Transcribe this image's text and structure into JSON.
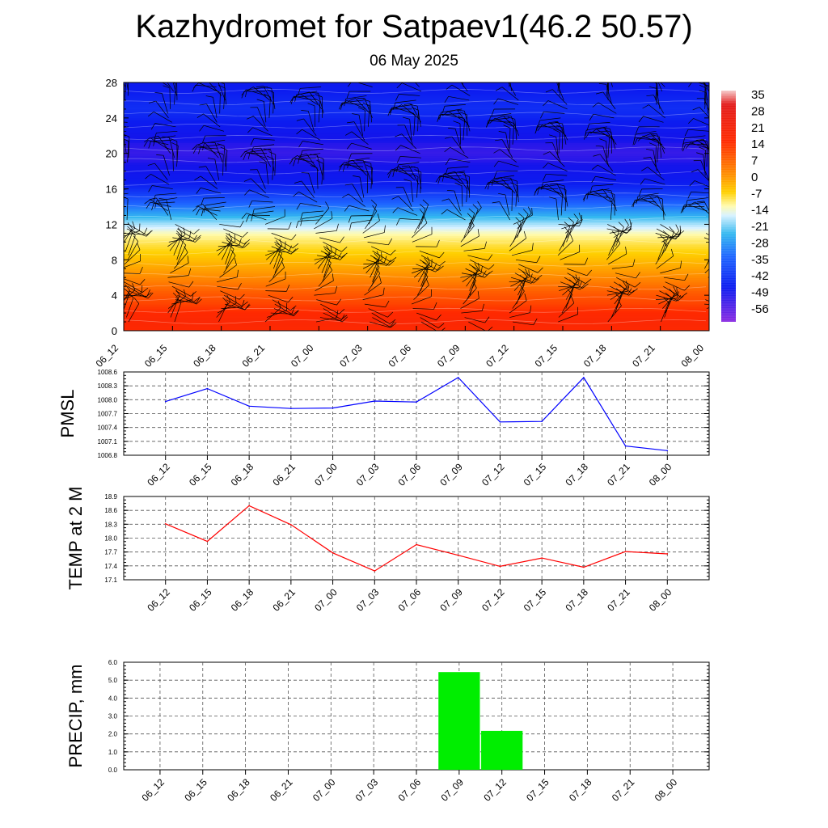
{
  "header": {
    "title": "Kazhydromet for Satpaev1(46.2 50.57)",
    "subtitle": "06 May 2025"
  },
  "time_labels": [
    "06_12",
    "06_15",
    "06_18",
    "06_21",
    "07_00",
    "07_03",
    "07_06",
    "07_09",
    "07_12",
    "07_15",
    "07_18",
    "07_21",
    "08_00"
  ],
  "chart_data": [
    {
      "id": "upper-air",
      "type": "heatmap",
      "title": "",
      "x": [
        "06_12",
        "06_15",
        "06_18",
        "06_21",
        "07_00",
        "07_03",
        "07_06",
        "07_09",
        "07_12",
        "07_15",
        "07_18",
        "07_21",
        "08_00"
      ],
      "ylim": [
        0,
        28
      ],
      "yticks": [
        0,
        4,
        8,
        12,
        16,
        20,
        24,
        28
      ],
      "levels": [
        0,
        1,
        2,
        3,
        4,
        5,
        6,
        7,
        8,
        9,
        10,
        11,
        12,
        13,
        14,
        15,
        16,
        17,
        18,
        19,
        20,
        21,
        22,
        23,
        24,
        25,
        26,
        27,
        28
      ],
      "temperature_profile": [
        22,
        23,
        21,
        18,
        16,
        13,
        10,
        7,
        4,
        1,
        -3,
        -8,
        -14,
        -22,
        -30,
        -38,
        -45,
        -50,
        -54,
        -57,
        -58,
        -57,
        -54,
        -50,
        -46,
        -44,
        -46,
        -48,
        -50
      ],
      "colorbar": {
        "labels": [
          "35",
          "28",
          "21",
          "14",
          "7",
          "0",
          "-7",
          "-14",
          "-21",
          "-28",
          "-35",
          "-42",
          "-49",
          "-56"
        ],
        "min": -63,
        "max": 42
      },
      "wind_barbs": true
    },
    {
      "id": "pmsl",
      "type": "line",
      "ylabel": "PMSL",
      "x": [
        "06_12",
        "06_15",
        "06_18",
        "06_21",
        "07_00",
        "07_03",
        "07_06",
        "07_09",
        "07_12",
        "07_15",
        "07_18",
        "07_21",
        "08_00"
      ],
      "series": [
        {
          "values": [
            1007.96,
            1008.24,
            1007.86,
            1007.81,
            1007.82,
            1007.97,
            1007.95,
            1008.48,
            1007.52,
            1007.53,
            1008.48,
            1007.0,
            1006.9
          ]
        }
      ],
      "ylim": [
        1006.8,
        1008.6
      ],
      "yticks": [
        "1006.8",
        "1007.1",
        "1007.4",
        "1007.7",
        "1008.0",
        "1008.3",
        "1008.6"
      ],
      "color": "#0000ff"
    },
    {
      "id": "temp2m",
      "type": "line",
      "ylabel": "TEMP at 2 M",
      "x": [
        "06_12",
        "06_15",
        "06_18",
        "06_21",
        "07_00",
        "07_03",
        "07_06",
        "07_09",
        "07_12",
        "07_15",
        "07_18",
        "07_21",
        "08_00"
      ],
      "series": [
        {
          "values": [
            18.31,
            17.93,
            18.7,
            18.29,
            17.68,
            17.29,
            17.86,
            17.63,
            17.39,
            17.57,
            17.37,
            17.71,
            17.66
          ]
        }
      ],
      "ylim": [
        17.1,
        18.9
      ],
      "yticks": [
        "17.1",
        "17.4",
        "17.7",
        "18.0",
        "18.3",
        "18.6",
        "18.9"
      ],
      "color": "#ff0000"
    },
    {
      "id": "precip",
      "type": "bar",
      "ylabel": "PRECIP, mm",
      "x": [
        "06_12",
        "06_15",
        "06_18",
        "06_21",
        "07_00",
        "07_03",
        "07_06",
        "07_09",
        "07_12",
        "07_15",
        "07_18",
        "07_21",
        "08_00"
      ],
      "values": [
        0,
        0,
        0,
        0,
        0,
        0,
        0,
        5.45,
        2.17,
        0,
        0,
        0,
        0
      ],
      "ylim": [
        0,
        6
      ],
      "yticks": [
        "0.0",
        "1.0",
        "2.0",
        "3.0",
        "4.0",
        "5.0",
        "6.0"
      ],
      "color": "#00ee00"
    }
  ]
}
